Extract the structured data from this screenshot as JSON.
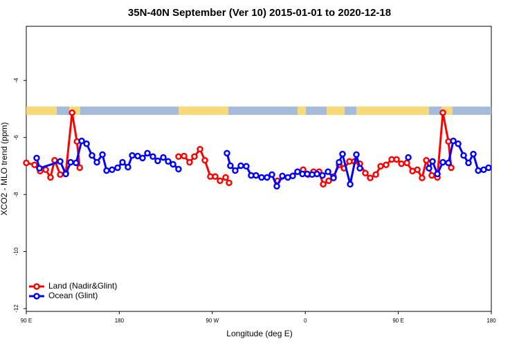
{
  "chart_data": {
    "type": "line",
    "title": "35N-40N September (Ver 10)   2015-01-01 to 2020-12-18",
    "x_label": "Longitude (deg E)",
    "y_label": "XCO2 - MLO trend (ppm)",
    "xlim": [
      90,
      540
    ],
    "xticks": [
      {
        "value": 90,
        "label": "90 E"
      },
      {
        "value": 180,
        "label": "180"
      },
      {
        "value": 270,
        "label": "90 W"
      },
      {
        "value": 360,
        "label": "0"
      },
      {
        "value": 450,
        "label": "90 E"
      },
      {
        "value": 540,
        "label": "180"
      }
    ],
    "ylim": [
      -12.1,
      -2.1
    ],
    "yticks": [
      -12,
      -10,
      -8,
      -6,
      -4
    ],
    "legend": "bottom-left",
    "series": [
      {
        "name": "Land (Nadir&Glint)",
        "color": "#ff0000",
        "x": [
          90,
          98,
          103.4,
          108.8,
          113.4,
          117.4,
          122.8,
          128.2,
          134.3,
          139,
          141.7,
          null,
          237.3,
          242.7,
          248,
          252.7,
          258.1,
          262.8,
          268.1,
          272.8,
          277.5,
          282.9,
          286.2,
          null,
          333.1,
          357.9,
          362.5,
          367.9,
          373.3,
          377.3,
          382.6,
          387.3,
          392.7,
          397.4,
          402.7,
          407.4,
          412.8,
          418.1,
          422.8,
          428.2,
          432.9,
          438.2,
          443.6,
          448.3,
          453,
          458.3,
          463.7,
          468.4,
          473,
          477.1,
          482.4,
          487.8,
          493.1,
          498.5,
          501.2
        ],
        "values": [
          -6.89,
          -6.96,
          -7.18,
          -7.13,
          -7.4,
          -6.8,
          -7.3,
          -7.25,
          -5.13,
          -6.14,
          -7.06,
          null,
          -6.67,
          -6.65,
          -6.87,
          -6.67,
          -6.41,
          -6.8,
          -7.37,
          -7.37,
          -7.52,
          -7.4,
          -7.59,
          null,
          -7.52,
          -7.13,
          -7.3,
          -7.2,
          -7.2,
          -7.64,
          -7.52,
          -7.37,
          -6.96,
          -7.08,
          -6.84,
          -6.84,
          -6.92,
          -7.25,
          -7.42,
          -7.3,
          -7.01,
          -6.96,
          -6.77,
          -6.77,
          -6.92,
          -6.89,
          -7.18,
          -7.13,
          -7.42,
          -6.8,
          -7.33,
          -7.4,
          -5.13,
          -6.14,
          -7.06
        ]
      },
      {
        "name": "Ocean (Glint)",
        "color": "#0000ff",
        "x": [
          100,
          102.7,
          122.8,
          128.2,
          132.9,
          138.2,
          143.6,
          148.3,
          153.6,
          158.3,
          163.7,
          167.7,
          173,
          178.4,
          183.1,
          188.4,
          192.5,
          197.8,
          202.5,
          207.2,
          212.5,
          217.2,
          222.6,
          227.3,
          232,
          237.3,
          null,
          284.2,
          287.5,
          292.2,
          297.6,
          302.9,
          307.6,
          312.3,
          317.7,
          323,
          327.7,
          332.4,
          337.8,
          343.1,
          347.8,
          352.5,
          357.2,
          361.9,
          366.6,
          371.3,
          376.6,
          382,
          387.3,
          392.7,
          396,
          403.4,
          409.4,
          412.8,
          null,
          459.7,
          null,
          479.7,
          483.1,
          487.8,
          493.1,
          498.5,
          503.2,
          507.9,
          513.2,
          517.9,
          522.6,
          527.3,
          532.6,
          537.3
        ],
        "values": [
          -6.72,
          -7.08,
          -6.84,
          -7.28,
          -6.87,
          -6.89,
          -6.12,
          -6.22,
          -6.63,
          -6.87,
          -6.6,
          -7.16,
          -7.13,
          -7.06,
          -6.87,
          -7.04,
          -6.63,
          -6.65,
          -6.72,
          -6.55,
          -6.67,
          -6.82,
          -6.7,
          -6.84,
          -6.94,
          -7.11,
          null,
          -6.55,
          -6.99,
          -7.16,
          -6.99,
          -7.01,
          -7.33,
          -7.33,
          -7.4,
          -7.4,
          -7.3,
          -7.71,
          -7.35,
          -7.4,
          -7.35,
          -7.2,
          -7.28,
          -7.28,
          -7.3,
          -7.28,
          -7.33,
          -7.2,
          -7.42,
          -6.87,
          -6.58,
          -7.64,
          -6.6,
          -7.08,
          null,
          -6.7,
          null,
          -7.08,
          -6.84,
          -7.28,
          -6.87,
          -6.89,
          -6.12,
          -6.22,
          -6.63,
          -6.89,
          -6.58,
          -7.16,
          -7.13,
          -7.06
        ]
      }
    ]
  }
}
